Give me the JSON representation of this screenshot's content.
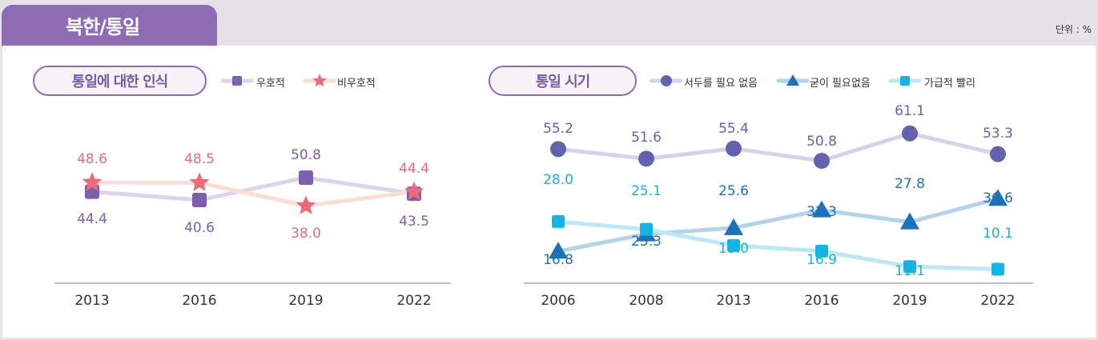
{
  "header": {
    "title": "북한/통일",
    "unit": "단위 : %"
  },
  "colors": {
    "purple": "#7d5fb0",
    "purple_line": "#ddd4ec",
    "red": "#ec6b78",
    "red_line": "#fbddd6",
    "navy": "#6562ad",
    "navy_line": "#d5d3ea",
    "blue": "#1c72b9",
    "blue_line": "#b3d3eb",
    "cyan": "#14b5e4",
    "cyan_line": "#bce7f6",
    "header_bg": "#8d6cb4"
  },
  "chart_data": [
    {
      "type": "line",
      "title": "통일에 대한 인식",
      "categories": [
        "2013",
        "2016",
        "2019",
        "2022"
      ],
      "series": [
        {
          "name": "우호적",
          "values": [
            44.4,
            40.6,
            50.8,
            43.5
          ],
          "marker": "square-icon"
        },
        {
          "name": "비우호적",
          "values": [
            48.6,
            48.5,
            38.0,
            44.4
          ],
          "marker": "star-icon"
        }
      ]
    },
    {
      "type": "line",
      "title": "통일 시기",
      "categories": [
        "2006",
        "2008",
        "2013",
        "2016",
        "2019",
        "2022"
      ],
      "series": [
        {
          "name": "서두를 필요 없음",
          "values": [
            55.2,
            51.6,
            55.4,
            50.8,
            61.1,
            53.3
          ],
          "marker": "circle-icon"
        },
        {
          "name": "굳이 필요없음",
          "values": [
            16.8,
            23.3,
            25.6,
            32.3,
            27.8,
            36.6
          ],
          "marker": "triangle-icon"
        },
        {
          "name": "가급적 빨리",
          "values": [
            28.0,
            25.1,
            19.0,
            16.9,
            11.1,
            10.1
          ],
          "marker": "square-icon"
        }
      ]
    }
  ],
  "labels": {
    "left": [
      "48.6",
      "48.5",
      "50.8",
      "44.4",
      "44.4",
      "40.6",
      "38.0",
      "43.5"
    ],
    "right": [
      "55.2",
      "51.6",
      "55.4",
      "50.8",
      "61.1",
      "53.3",
      "28.0",
      "25.1",
      "25.6",
      "27.8",
      "32.3",
      "36.6",
      "16.8",
      "23.3",
      "19.0",
      "16.9",
      "11.1",
      "10.1"
    ]
  }
}
